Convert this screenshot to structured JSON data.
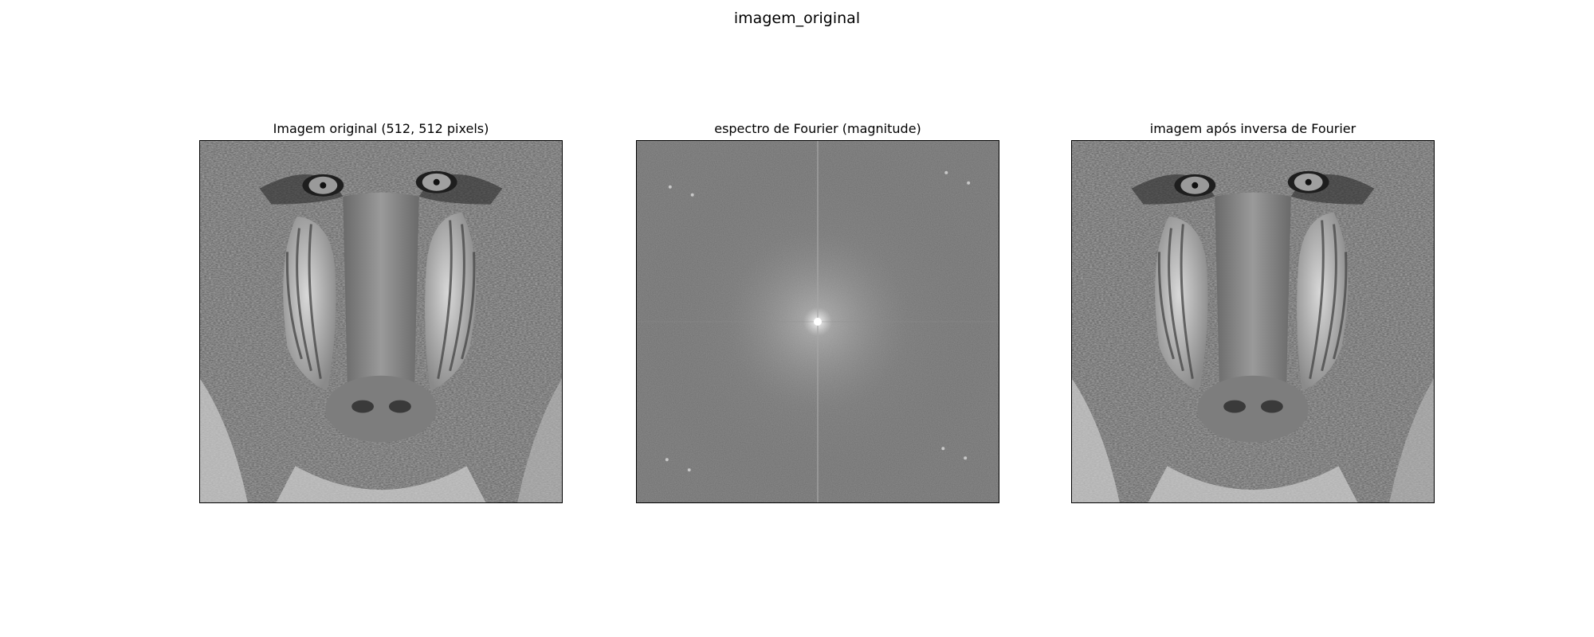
{
  "figure": {
    "suptitle": "imagem_original",
    "panels": [
      {
        "title": "Imagem original (512, 512 pixels)",
        "content": "grayscale photograph of a mandrill (baboon) face",
        "pixels": [
          512,
          512
        ]
      },
      {
        "title": "espectro de Fourier (magnitude)",
        "content": "log-magnitude Fourier spectrum, bright center peak with cross lines"
      },
      {
        "title": "imagem após inversa de Fourier",
        "content": "reconstructed grayscale mandrill image after inverse Fourier transform"
      }
    ]
  },
  "colors": {
    "background": "#ffffff",
    "axes_border": "#000000",
    "spectrum_gray": "#6f6f6f"
  }
}
